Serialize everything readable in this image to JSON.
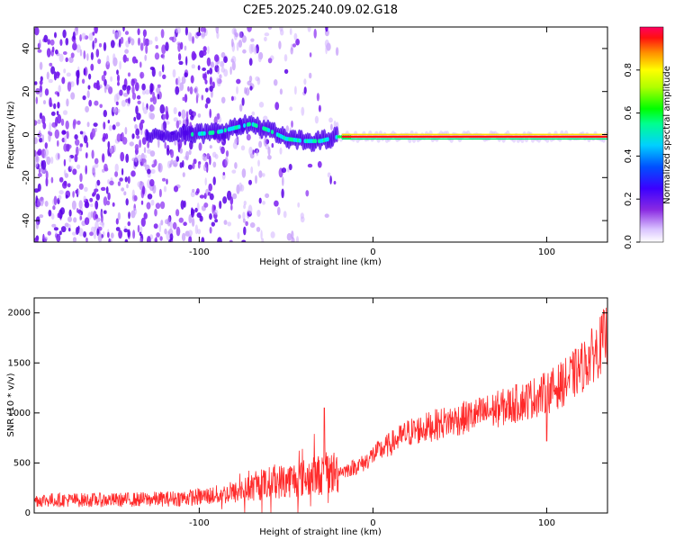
{
  "title": "C2E5.2025.240.09.02.G18",
  "colors": {
    "snr_line": "#ff2a2a",
    "spec_noise": "#5a00e6",
    "spec_noise_light": "#c8a0ff",
    "axis": "#000000"
  },
  "chart_data": [
    {
      "type": "heatmap",
      "name": "spectrogram",
      "xlabel": "Height of straight line (km)",
      "ylabel": "Frequency (Hz)",
      "xlim": [
        -195,
        135
      ],
      "ylim": [
        -50,
        50
      ],
      "x_ticks": [
        -100,
        0,
        100
      ],
      "x_tick_labels": [
        "-100",
        "0",
        "100"
      ],
      "y_ticks": [
        -40,
        -20,
        0,
        20,
        40
      ],
      "y_tick_labels": [
        "-40",
        "-20",
        "0",
        "20",
        "40"
      ],
      "signal_track": {
        "description_points_km": [
          -105,
          -90,
          -80,
          -70,
          -60,
          -50,
          -40,
          -30,
          -20,
          -10,
          0,
          20,
          60,
          100,
          135
        ],
        "frequency_hz": [
          0,
          1,
          3,
          5,
          2,
          -2,
          -3,
          -3,
          -1,
          -1,
          -1,
          -1,
          -1,
          -1,
          -1
        ]
      },
      "colorbar": {
        "label": "Normalized spectral amplitude",
        "ticks": [
          0.0,
          0.2,
          0.4,
          0.6,
          0.8
        ],
        "tick_labels": [
          "0.0",
          "0.2",
          "0.4",
          "0.6",
          "0.8"
        ],
        "range": [
          0,
          1
        ]
      }
    },
    {
      "type": "line",
      "name": "snr",
      "xlabel": "Height of straight line (km)",
      "ylabel": "SNR (10 * v/v)",
      "xlim": [
        -195,
        135
      ],
      "ylim": [
        0,
        2150
      ],
      "x_ticks": [
        -100,
        0,
        100
      ],
      "x_tick_labels": [
        "-100",
        "0",
        "100"
      ],
      "y_ticks": [
        0,
        500,
        1000,
        1500,
        2000
      ],
      "y_tick_labels": [
        "0",
        "500",
        "1000",
        "1500",
        "2000"
      ],
      "trend_x": [
        -195,
        -150,
        -120,
        -100,
        -80,
        -60,
        -40,
        -25,
        -15,
        -5,
        0,
        20,
        40,
        60,
        80,
        100,
        110,
        120,
        130,
        135
      ],
      "trend_y": [
        130,
        130,
        140,
        160,
        200,
        300,
        350,
        400,
        430,
        500,
        580,
        800,
        900,
        980,
        1080,
        1200,
        1300,
        1450,
        1650,
        1800
      ],
      "spikes": [
        {
          "x": -28,
          "y": 1050
        },
        {
          "x": 100,
          "y": 720
        }
      ]
    }
  ]
}
